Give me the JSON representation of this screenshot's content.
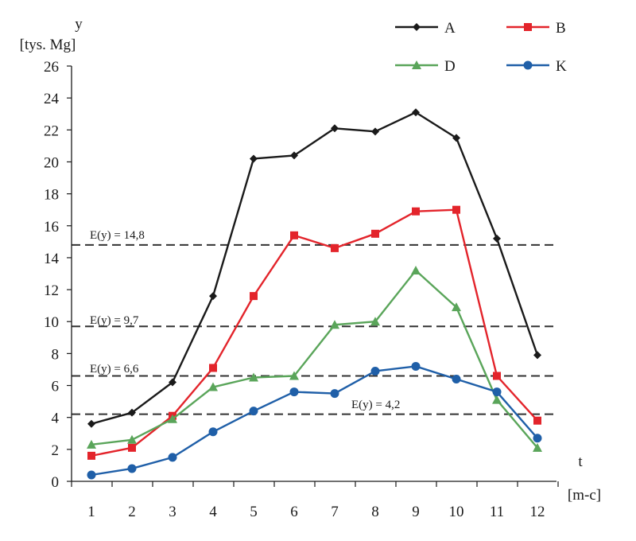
{
  "chart_data": {
    "type": "line",
    "y_axis": {
      "symbol": "y",
      "unit": "[tys. Mg]",
      "ylim": [
        0,
        26
      ],
      "ticks": [
        0,
        2,
        4,
        6,
        8,
        10,
        12,
        14,
        16,
        18,
        20,
        22,
        24,
        26
      ]
    },
    "x_axis": {
      "symbol": "t",
      "unit": "[m-c]"
    },
    "categories": [
      "1",
      "2",
      "3",
      "4",
      "5",
      "6",
      "7",
      "8",
      "9",
      "10",
      "11",
      "12"
    ],
    "series": [
      {
        "name": "A",
        "color": "#1a1a1a",
        "marker": "diamond",
        "values": [
          3.6,
          4.3,
          6.2,
          11.6,
          20.2,
          20.4,
          22.1,
          21.9,
          23.1,
          21.5,
          15.2,
          7.9
        ]
      },
      {
        "name": "B",
        "color": "#e3242b",
        "marker": "square",
        "values": [
          1.6,
          2.1,
          4.1,
          7.1,
          11.6,
          15.4,
          14.6,
          15.5,
          16.9,
          17.0,
          6.6,
          3.8
        ]
      },
      {
        "name": "D",
        "color": "#5aa55a",
        "marker": "triangle",
        "values": [
          2.3,
          2.6,
          3.9,
          5.9,
          6.5,
          6.6,
          9.8,
          10.0,
          13.2,
          10.9,
          5.1,
          2.1
        ]
      },
      {
        "name": "K",
        "color": "#1f5fa8",
        "marker": "circle",
        "values": [
          0.4,
          0.8,
          1.5,
          3.1,
          4.4,
          5.6,
          5.5,
          6.9,
          7.2,
          6.4,
          5.6,
          2.7
        ]
      }
    ],
    "reference_lines": [
      {
        "label": "E(y) = 14,8",
        "value": 14.8
      },
      {
        "label": "E(y) = 9,7",
        "value": 9.7
      },
      {
        "label": "E(y) = 6,6",
        "value": 6.6
      },
      {
        "label": "E(y) = 4,2",
        "value": 4.2
      }
    ],
    "legend_position": "top-right",
    "grid": false
  }
}
